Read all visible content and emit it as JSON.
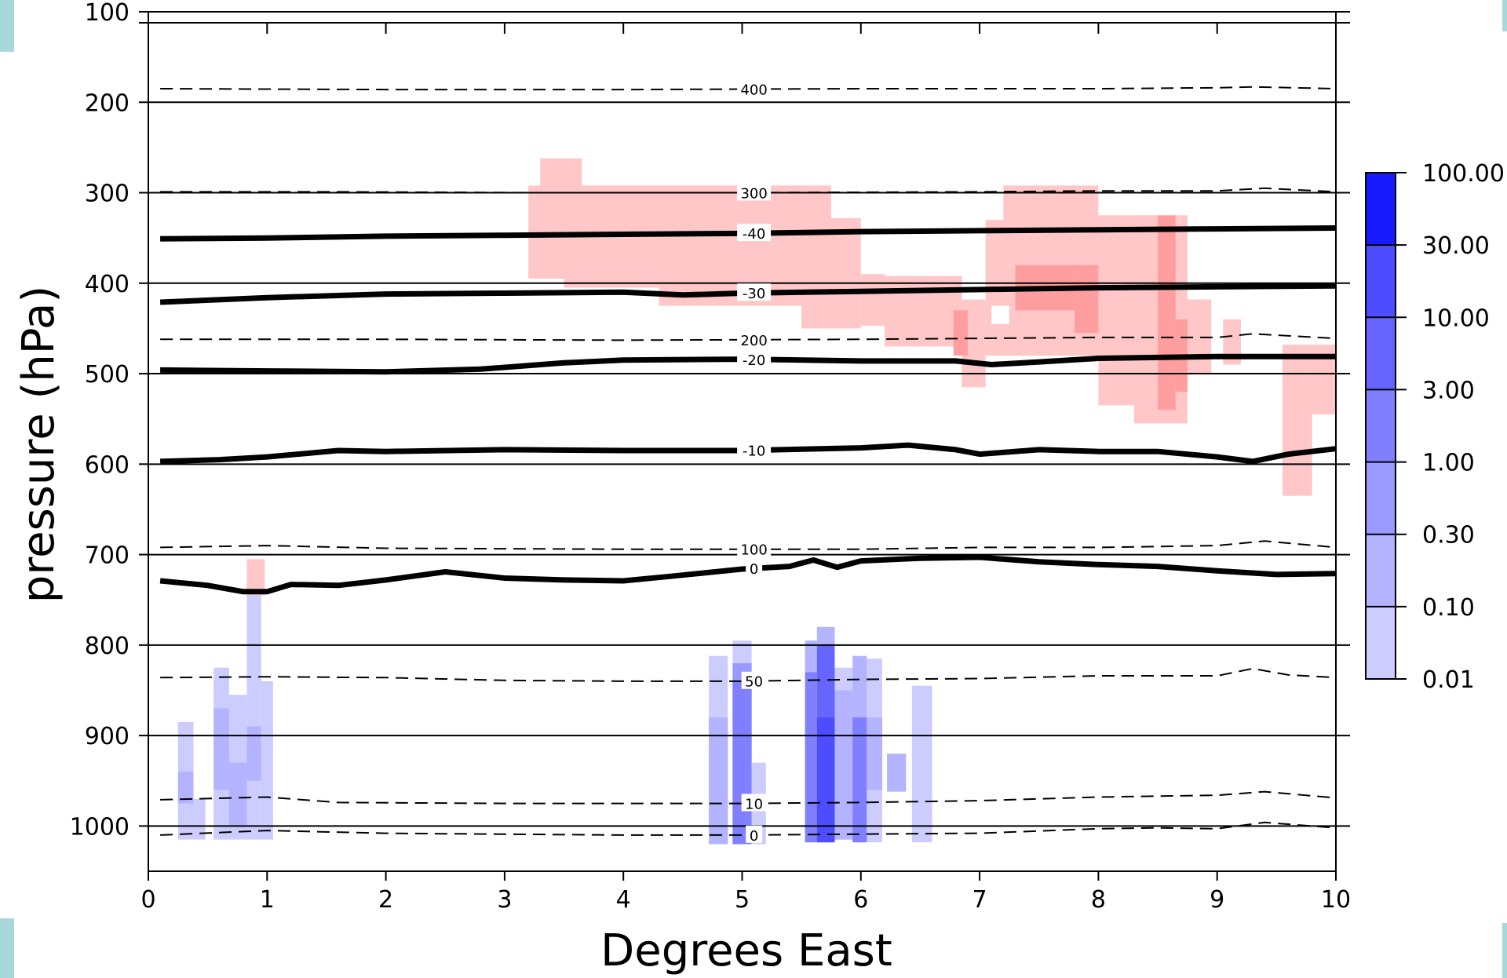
{
  "chart_data": {
    "type": "heatmap",
    "title": "",
    "xlabel": "Degrees East",
    "ylabel": "pressure (hPa)",
    "xlim": [
      0,
      10
    ],
    "ylim": [
      1050,
      100
    ],
    "x_ticks": [
      0,
      1,
      2,
      3,
      4,
      5,
      6,
      7,
      8,
      9,
      10
    ],
    "y_ticks": [
      100,
      200,
      300,
      400,
      500,
      600,
      700,
      800,
      900,
      1000
    ],
    "grid": "horizontal",
    "colorbar": {
      "position": "right",
      "levels": [
        "0.01",
        "0.10",
        "0.30",
        "1.00",
        "3.00",
        "10.00",
        "30.00",
        "100.00"
      ],
      "colors": [
        "#ccccff",
        "#b3b3ff",
        "#9999ff",
        "#8080ff",
        "#6666ff",
        "#4d4dff",
        "#1a1aff"
      ]
    },
    "temperature_contours": [
      {
        "label": "-40",
        "points": [
          [
            0.1,
            351
          ],
          [
            1,
            350
          ],
          [
            2,
            348
          ],
          [
            3,
            347
          ],
          [
            4,
            346
          ],
          [
            5,
            345
          ],
          [
            6,
            343
          ],
          [
            7,
            342
          ],
          [
            8,
            341
          ],
          [
            9,
            340
          ],
          [
            10,
            339
          ]
        ]
      },
      {
        "label": "-30",
        "points": [
          [
            0.1,
            421
          ],
          [
            1,
            416
          ],
          [
            2,
            412
          ],
          [
            3,
            411
          ],
          [
            4,
            410
          ],
          [
            4.5,
            413
          ],
          [
            5,
            411
          ],
          [
            6,
            409
          ],
          [
            7,
            407
          ],
          [
            8,
            405
          ],
          [
            9,
            404
          ],
          [
            10,
            403
          ]
        ]
      },
      {
        "label": "-20",
        "points": [
          [
            0.1,
            496
          ],
          [
            1,
            497
          ],
          [
            2,
            498
          ],
          [
            2.8,
            495
          ],
          [
            3.5,
            488
          ],
          [
            4,
            485
          ],
          [
            5,
            484
          ],
          [
            6,
            486
          ],
          [
            6.8,
            486
          ],
          [
            7.1,
            490
          ],
          [
            7.5,
            487
          ],
          [
            8,
            483
          ],
          [
            9,
            481
          ],
          [
            10,
            481
          ]
        ]
      },
      {
        "label": "-10",
        "points": [
          [
            0.1,
            597
          ],
          [
            0.6,
            595
          ],
          [
            1,
            592
          ],
          [
            1.6,
            585
          ],
          [
            2,
            586
          ],
          [
            3,
            584
          ],
          [
            4,
            585
          ],
          [
            5,
            585
          ],
          [
            6,
            582
          ],
          [
            6.4,
            579
          ],
          [
            6.8,
            584
          ],
          [
            7,
            589
          ],
          [
            7.5,
            584
          ],
          [
            8,
            586
          ],
          [
            8.5,
            586
          ],
          [
            9,
            592
          ],
          [
            9.3,
            597
          ],
          [
            9.6,
            589
          ],
          [
            10,
            583
          ]
        ]
      },
      {
        "label": "0",
        "points": [
          [
            0.1,
            729
          ],
          [
            0.5,
            734
          ],
          [
            0.8,
            741
          ],
          [
            1,
            741
          ],
          [
            1.2,
            733
          ],
          [
            1.6,
            734
          ],
          [
            2,
            728
          ],
          [
            2.5,
            719
          ],
          [
            3,
            726
          ],
          [
            3.5,
            728
          ],
          [
            4,
            729
          ],
          [
            4.4,
            724
          ],
          [
            5,
            716
          ],
          [
            5.4,
            713
          ],
          [
            5.6,
            706
          ],
          [
            5.8,
            714
          ],
          [
            6,
            707
          ],
          [
            6.5,
            704
          ],
          [
            7,
            703
          ],
          [
            7.5,
            708
          ],
          [
            8,
            711
          ],
          [
            8.5,
            713
          ],
          [
            9,
            718
          ],
          [
            9.5,
            722
          ],
          [
            10,
            721
          ]
        ]
      }
    ],
    "height_contours": [
      {
        "label": "400",
        "points": [
          [
            0.1,
            185
          ],
          [
            2,
            186
          ],
          [
            4,
            186
          ],
          [
            6,
            185
          ],
          [
            8,
            185
          ],
          [
            9,
            184
          ],
          [
            9.3,
            183
          ],
          [
            10,
            185
          ]
        ]
      },
      {
        "label": "300",
        "points": [
          [
            0.1,
            299
          ],
          [
            1.6,
            299
          ],
          [
            3.3,
            300
          ],
          [
            5,
            300
          ],
          [
            7,
            299
          ],
          [
            8,
            298
          ],
          [
            9,
            298
          ],
          [
            9.4,
            295
          ],
          [
            10,
            299
          ]
        ]
      },
      {
        "label": "200",
        "points": [
          [
            0.1,
            462
          ],
          [
            2,
            462
          ],
          [
            4,
            463
          ],
          [
            6,
            462
          ],
          [
            8,
            460
          ],
          [
            9,
            460
          ],
          [
            9.3,
            456
          ],
          [
            10,
            461
          ]
        ]
      },
      {
        "label": "100",
        "points": [
          [
            0.1,
            692
          ],
          [
            1,
            690
          ],
          [
            2,
            693
          ],
          [
            4,
            694
          ],
          [
            6,
            694
          ],
          [
            7,
            692
          ],
          [
            8,
            692
          ],
          [
            9,
            690
          ],
          [
            9.4,
            685
          ],
          [
            10,
            692
          ]
        ]
      },
      {
        "label": "50",
        "points": [
          [
            0.1,
            836
          ],
          [
            1,
            835
          ],
          [
            2,
            836
          ],
          [
            3,
            839
          ],
          [
            4,
            840
          ],
          [
            5,
            840
          ],
          [
            6,
            838
          ],
          [
            7,
            837
          ],
          [
            8,
            834
          ],
          [
            9,
            834
          ],
          [
            9.3,
            826
          ],
          [
            9.6,
            833
          ],
          [
            10,
            836
          ]
        ]
      },
      {
        "label": "10",
        "points": [
          [
            0.1,
            971
          ],
          [
            1,
            968
          ],
          [
            1.6,
            974
          ],
          [
            3,
            975
          ],
          [
            5,
            975
          ],
          [
            6,
            974
          ],
          [
            7,
            972
          ],
          [
            8,
            968
          ],
          [
            9,
            966
          ],
          [
            9.4,
            962
          ],
          [
            10,
            969
          ]
        ]
      },
      {
        "label": "0",
        "points": [
          [
            0.1,
            1010
          ],
          [
            1,
            1005
          ],
          [
            2,
            1008
          ],
          [
            4,
            1010
          ],
          [
            5,
            1010
          ],
          [
            6,
            1009
          ],
          [
            7,
            1008
          ],
          [
            8,
            1003
          ],
          [
            8.5,
            1002
          ],
          [
            9,
            1003
          ],
          [
            9.4,
            996
          ],
          [
            10,
            1002
          ]
        ]
      }
    ],
    "red_region": {
      "color": "#ffc7c7",
      "dark_color": "#ff9e9e",
      "patches": [
        {
          "x": [
            3.3,
            3.65
          ],
          "y": [
            262,
            378
          ]
        },
        {
          "x": [
            3.2,
            5.5
          ],
          "y": [
            292,
            395
          ]
        },
        {
          "x": [
            3.5,
            5.5
          ],
          "y": [
            395,
            405
          ]
        },
        {
          "x": [
            4.3,
            5.5
          ],
          "y": [
            405,
            425
          ]
        },
        {
          "x": [
            5.5,
            5.75
          ],
          "y": [
            292,
            450
          ]
        },
        {
          "x": [
            5.75,
            6.0
          ],
          "y": [
            328,
            450
          ]
        },
        {
          "x": [
            6.0,
            6.2
          ],
          "y": [
            390,
            447
          ]
        },
        {
          "x": [
            6.2,
            6.85
          ],
          "y": [
            392,
            470
          ]
        },
        {
          "x": [
            6.85,
            7.05
          ],
          "y": [
            418,
            515
          ]
        },
        {
          "x": [
            7.05,
            7.8
          ],
          "y": [
            330,
            480
          ]
        },
        {
          "x": [
            7.2,
            8.0
          ],
          "y": [
            292,
            330
          ]
        },
        {
          "x": [
            7.8,
            8.4
          ],
          "y": [
            330,
            480
          ]
        },
        {
          "x": [
            8.0,
            8.5
          ],
          "y": [
            325,
            535
          ]
        },
        {
          "x": [
            8.3,
            8.75
          ],
          "y": [
            325,
            555
          ]
        },
        {
          "x": [
            8.75,
            8.95
          ],
          "y": [
            418,
            500
          ]
        },
        {
          "x": [
            9.05,
            9.2
          ],
          "y": [
            440,
            490
          ]
        },
        {
          "x": [
            9.55,
            9.8
          ],
          "y": [
            468,
            635
          ]
        },
        {
          "x": [
            9.8,
            10.0
          ],
          "y": [
            468,
            545
          ]
        },
        {
          "x": [
            0.83,
            0.98
          ],
          "y": [
            705,
            745
          ]
        }
      ],
      "dark_patches": [
        {
          "x": [
            7.3,
            7.8
          ],
          "y": [
            380,
            430
          ]
        },
        {
          "x": [
            7.8,
            8.0
          ],
          "y": [
            380,
            455
          ]
        },
        {
          "x": [
            8.5,
            8.65
          ],
          "y": [
            325,
            540
          ]
        },
        {
          "x": [
            8.65,
            8.75
          ],
          "y": [
            440,
            520
          ]
        },
        {
          "x": [
            6.78,
            6.9
          ],
          "y": [
            430,
            480
          ]
        }
      ],
      "holes": [
        {
          "x": [
            7.1,
            7.25
          ],
          "y": [
            425,
            445
          ]
        }
      ]
    },
    "blue_columns": [
      {
        "x": [
          0.25,
          0.38
        ],
        "bands": [
          {
            "y": [
              885,
              1015
            ],
            "level": 0
          },
          {
            "y": [
              940,
              975
            ],
            "level": 1
          }
        ]
      },
      {
        "x": [
          0.38,
          0.48
        ],
        "bands": [
          {
            "y": [
              970,
              1015
            ],
            "level": 0
          }
        ]
      },
      {
        "x": [
          0.55,
          0.68
        ],
        "bands": [
          {
            "y": [
              825,
              1015
            ],
            "level": 0
          },
          {
            "y": [
              870,
              960
            ],
            "level": 1
          }
        ]
      },
      {
        "x": [
          0.68,
          0.83
        ],
        "bands": [
          {
            "y": [
              855,
              1015
            ],
            "level": 0
          },
          {
            "y": [
              930,
              1000
            ],
            "level": 1
          }
        ]
      },
      {
        "x": [
          0.83,
          0.95
        ],
        "bands": [
          {
            "y": [
              745,
              1015
            ],
            "level": 0
          },
          {
            "y": [
              890,
              950
            ],
            "level": 1
          }
        ]
      },
      {
        "x": [
          0.95,
          1.05
        ],
        "bands": [
          {
            "y": [
              840,
              1015
            ],
            "level": 0
          }
        ]
      },
      {
        "x": [
          4.72,
          4.88
        ],
        "bands": [
          {
            "y": [
              812,
              1020
            ],
            "level": 0
          },
          {
            "y": [
              880,
              1020
            ],
            "level": 1
          }
        ]
      },
      {
        "x": [
          4.92,
          5.08
        ],
        "bands": [
          {
            "y": [
              795,
              1020
            ],
            "level": 0
          },
          {
            "y": [
              820,
              1020
            ],
            "level": 2
          },
          {
            "y": [
              840,
              1020
            ],
            "level": 3
          }
        ]
      },
      {
        "x": [
          5.08,
          5.2
        ],
        "bands": [
          {
            "y": [
              930,
              1020
            ],
            "level": 0
          }
        ]
      },
      {
        "x": [
          5.53,
          5.63
        ],
        "bands": [
          {
            "y": [
              795,
              1018
            ],
            "level": 1
          },
          {
            "y": [
              830,
              1018
            ],
            "level": 3
          }
        ]
      },
      {
        "x": [
          5.63,
          5.78
        ],
        "bands": [
          {
            "y": [
              780,
              1018
            ],
            "level": 1
          },
          {
            "y": [
              800,
              1018
            ],
            "level": 4
          },
          {
            "y": [
              880,
              1018
            ],
            "level": 5
          }
        ]
      },
      {
        "x": [
          5.78,
          5.93
        ],
        "bands": [
          {
            "y": [
              825,
              1015
            ],
            "level": 0
          },
          {
            "y": [
              850,
              1015
            ],
            "level": 1
          }
        ]
      },
      {
        "x": [
          5.93,
          6.05
        ],
        "bands": [
          {
            "y": [
              812,
              1018
            ],
            "level": 1
          },
          {
            "y": [
              880,
              1018
            ],
            "level": 3
          }
        ]
      },
      {
        "x": [
          6.05,
          6.18
        ],
        "bands": [
          {
            "y": [
              815,
              1018
            ],
            "level": 0
          },
          {
            "y": [
              880,
              960
            ],
            "level": 1
          }
        ]
      },
      {
        "x": [
          6.22,
          6.38
        ],
        "bands": [
          {
            "y": [
              920,
              962
            ],
            "level": 1
          }
        ]
      },
      {
        "x": [
          6.43,
          6.6
        ],
        "bands": [
          {
            "y": [
              845,
              1018
            ],
            "level": 0
          }
        ]
      }
    ]
  }
}
